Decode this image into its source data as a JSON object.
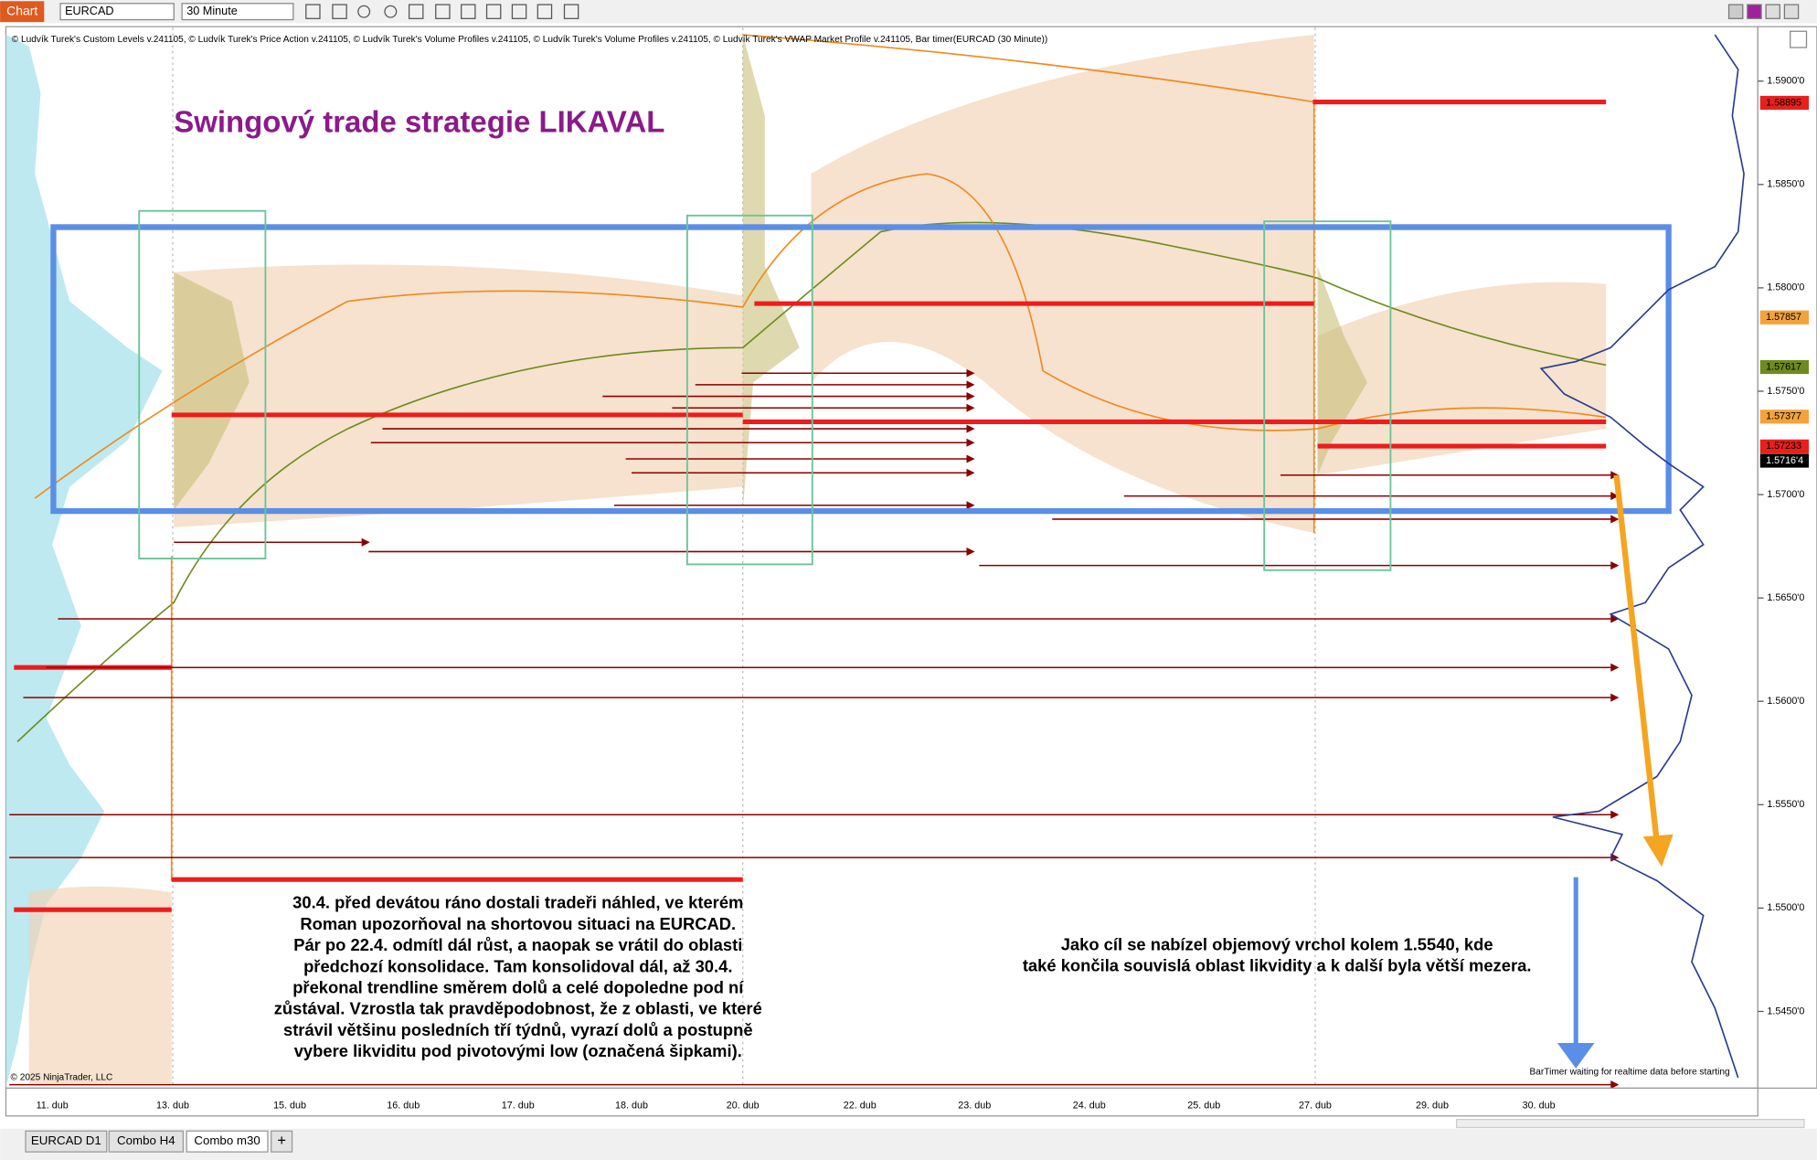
{
  "toolbar": {
    "tab": "Chart",
    "instrument": "EURCAD",
    "interval": "30 Minute"
  },
  "indicators": "© Ludvík Turek's Custom Levels v.241105, © Ludvík Turek's Price Action v.241105, © Ludvík Turek's Volume Profiles v.241105, © Ludvík Turek's Volume Profiles v.241105, © Ludvík Turek's VWAP Market Profile v.241105, Bar timer(EURCAD (30 Minute))",
  "title": "Swingový trade strategie LIKAVAL",
  "note_left": [
    "30.4. před devátou ráno dostali tradeři náhled, ve kterém",
    "Roman upozorňoval na shortovou situaci na EURCAD.",
    "Pár po 22.4. odmítl dál růst, a naopak se vrátil do oblasti",
    "předchozí konsolidace. Tam konsolidoval dál, až 30.4.",
    "překonal trendline směrem dolů a celé dopoledne pod ní",
    "zůstával. Vzrostla tak pravděpodobnost, že z oblasti, ve které",
    "strávil většinu posledních tří týdnů, vyrazí dolů a postupně",
    "vybere likviditu pod pivotovými low (označená šipkami)."
  ],
  "note_right": [
    "Jako cíl se nabízel objemový vrchol kolem 1.5540, kde",
    "také končila souvislá oblast likvidity a k další byla větší mezera."
  ],
  "copyright": "© 2025 NinjaTrader, LLC",
  "bartimer": "BarTimer waiting for realtime data before starting",
  "price_axis": [
    {
      "value": 1.59,
      "label": "1.5900'0"
    },
    {
      "value": 1.585,
      "label": "1.5850'0"
    },
    {
      "value": 1.58,
      "label": "1.5800'0"
    },
    {
      "value": 1.575,
      "label": "1.5750'0"
    },
    {
      "value": 1.57,
      "label": "1.5700'0"
    },
    {
      "value": 1.565,
      "label": "1.5650'0"
    },
    {
      "value": 1.56,
      "label": "1.5600'0"
    },
    {
      "value": 1.555,
      "label": "1.5550'0"
    },
    {
      "value": 1.55,
      "label": "1.5500'0"
    },
    {
      "value": 1.545,
      "label": "1.5450'0"
    }
  ],
  "price_markers": [
    {
      "value": 1.58895,
      "label": "1.58895",
      "color": "#e8201c"
    },
    {
      "value": 1.57857,
      "label": "1.57857",
      "color": "#f4a23a"
    },
    {
      "value": 1.57617,
      "label": "1.57617",
      "color": "#6e8b1e"
    },
    {
      "value": 1.57377,
      "label": "1.57377",
      "color": "#f4a23a"
    },
    {
      "value": 1.57233,
      "label": "1.57233",
      "color": "#e8201c"
    },
    {
      "value": 1.57164,
      "label": "1.5716'4",
      "color": "#000000"
    }
  ],
  "dates": [
    "11. dub",
    "13. dub",
    "15. dub",
    "16. dub",
    "17. dub",
    "18. dub",
    "20. dub",
    "22. dub",
    "23. dub",
    "24. dub",
    "25. dub",
    "27. dub",
    "29. dub",
    "30. dub"
  ],
  "tabs": [
    "EURCAD D1",
    "Combo H4",
    "Combo m30",
    "+"
  ]
}
